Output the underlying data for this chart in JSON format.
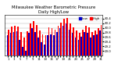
{
  "title": "Milwaukee Weather Barometric Pressure",
  "subtitle": "Daily High/Low",
  "days": [
    1,
    2,
    3,
    4,
    5,
    6,
    7,
    8,
    9,
    10,
    11,
    12,
    13,
    14,
    15,
    16,
    17,
    18,
    19,
    20,
    21,
    22,
    23,
    24,
    25,
    26,
    27,
    28,
    29,
    30,
    31
  ],
  "highs": [
    29.92,
    30.04,
    30.08,
    30.06,
    29.82,
    29.58,
    29.85,
    30.18,
    30.28,
    30.12,
    29.88,
    29.72,
    29.68,
    30.02,
    29.98,
    29.92,
    30.08,
    30.22,
    30.38,
    30.42,
    30.18,
    30.02,
    29.88,
    29.78,
    29.92,
    30.08,
    30.02,
    29.82,
    29.88,
    29.98,
    30.12
  ],
  "lows": [
    29.68,
    29.78,
    29.82,
    29.85,
    29.48,
    29.18,
    29.02,
    29.78,
    29.98,
    29.82,
    29.58,
    29.38,
    29.28,
    29.68,
    29.72,
    29.68,
    29.82,
    29.98,
    30.08,
    30.18,
    29.92,
    29.78,
    29.58,
    29.48,
    29.62,
    29.82,
    29.78,
    29.58,
    29.68,
    29.72,
    29.88
  ],
  "bar_color_high": "#ff0000",
  "bar_color_low": "#0000cc",
  "ylim_min": 28.8,
  "ylim_max": 30.55,
  "yticks": [
    29.0,
    29.2,
    29.4,
    29.6,
    29.8,
    30.0,
    30.2,
    30.4
  ],
  "ytick_labels": [
    "29.0",
    "29.2",
    "29.4",
    "29.6",
    "29.8",
    "30.0",
    "30.2",
    "30.4"
  ],
  "background_color": "#ffffff",
  "legend_high": "High",
  "legend_low": "Low",
  "bar_width": 0.42,
  "fontsize_title": 3.8,
  "fontsize_axis": 2.8,
  "fontsize_legend": 3.0
}
